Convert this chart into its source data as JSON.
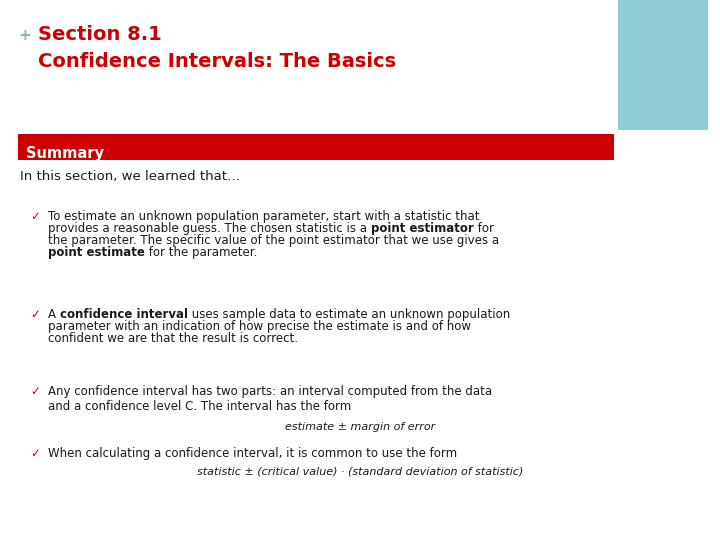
{
  "background_color": "#ffffff",
  "plus_color": "#8ab4ba",
  "title_color": "#cc0000",
  "title_line1": "Section 8.1",
  "title_line2": "Confidence Intervals: The Basics",
  "title_fontsize": 14,
  "summary_bar_color": "#cc0000",
  "summary_text": "Summary",
  "summary_text_color": "#ffffff",
  "summary_fontsize": 10.5,
  "intro_text": "In this section, we learned that…",
  "intro_fontsize": 9.5,
  "body_color": "#1a1a1a",
  "check_color": "#cc0000",
  "teal_rect_color": "#8ecdd6",
  "body_fontsize": 8.5,
  "centered_fontsize": 8.0,
  "bullet1_parts": [
    {
      "text": "To estimate an unknown population parameter, start with a statistic that\nprovides a reasonable guess. The chosen statistic is a ",
      "bold": false
    },
    {
      "text": "point estimator",
      "bold": true
    },
    {
      "text": " for\nthe parameter. The specific value of the point estimator that we use gives a\n",
      "bold": false
    },
    {
      "text": "point estimate",
      "bold": true
    },
    {
      "text": " for the parameter.",
      "bold": false
    }
  ],
  "bullet2_parts": [
    {
      "text": "A ",
      "bold": false
    },
    {
      "text": "confidence interval",
      "bold": true
    },
    {
      "text": " uses sample data to estimate an unknown population\nparameter with an indication of how precise the estimate is and of how\nconfident we are that the result is correct.",
      "bold": false
    }
  ],
  "bullet3_text": "Any confidence interval has two parts: an interval computed from the data\nand a confidence level C. The interval has the form",
  "bullet3_centered": "estimate ± margin of error",
  "bullet4_text": "When calculating a confidence interval, it is common to use the form",
  "bullet4_centered": "statistic ± (critical value) · (standard deviation of statistic)"
}
